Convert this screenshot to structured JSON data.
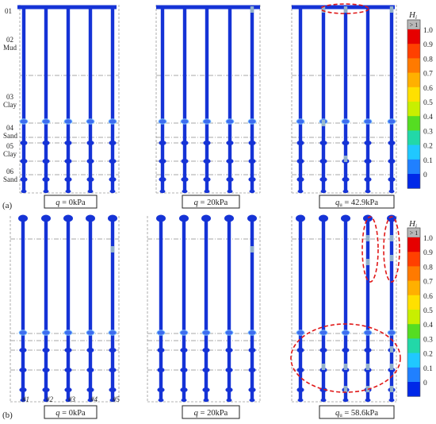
{
  "rows": [
    {
      "label": "(a)",
      "panels": [
        {
          "caption_var": "q",
          "caption_value": " = 0kPa"
        },
        {
          "caption_var": "q",
          "caption_value": " = 20kPa"
        },
        {
          "caption_var": "q",
          "caption_sub": "u",
          "caption_value": " = 42.9kPa"
        }
      ]
    },
    {
      "label": "(b)",
      "panels": [
        {
          "caption_var": "q",
          "caption_value": " = 0kPa"
        },
        {
          "caption_var": "q",
          "caption_value": " = 20kPa"
        },
        {
          "caption_var": "q",
          "caption_sub": "u",
          "caption_value": " = 58.6kPa"
        }
      ]
    }
  ],
  "soil_layers": [
    {
      "num": "01",
      "name": ""
    },
    {
      "num": "02",
      "name": "Mud"
    },
    {
      "num": "03",
      "name": "Clay"
    },
    {
      "num": "04",
      "name": "Sand"
    },
    {
      "num": "05",
      "name": "Clay"
    },
    {
      "num": "06",
      "name": "Sand"
    }
  ],
  "pile_labels": [
    "#1",
    "#2",
    "#3",
    "#4",
    "#5"
  ],
  "colorbar": {
    "title_main": "H",
    "title_sub": "i",
    "top_label": "> 1",
    "ticks": [
      "1.0",
      "0.9",
      "0.8",
      "0.7",
      "0.6",
      "0.5",
      "0.4",
      "0.3",
      "0.2",
      "0.1",
      "0"
    ],
    "colors": [
      "#e60000",
      "#ff4000",
      "#ff7a00",
      "#ffb000",
      "#ffe000",
      "#c8ef00",
      "#55dd22",
      "#22d8a8",
      "#20c8ff",
      "#2080ff",
      "#0028e8"
    ],
    "over_color": "#b8b8b8"
  },
  "style": {
    "pile_color": "#1533d6",
    "highlight_color": "#e01818"
  }
}
